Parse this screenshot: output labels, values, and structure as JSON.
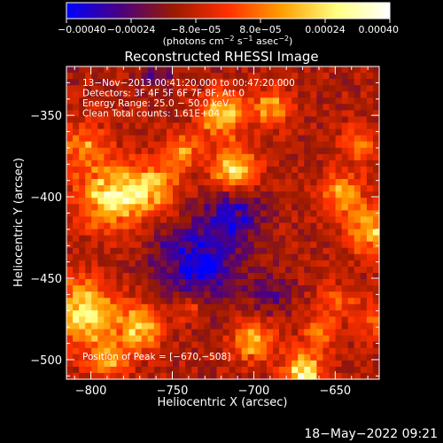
{
  "chart_data": {
    "type": "heatmap",
    "title": "Reconstructed RHESSI Image",
    "xlabel": "Heliocentric X (arcsec)",
    "ylabel": "Heliocentric Y (arcsec)",
    "xlim": [
      -815,
      -623
    ],
    "ylim": [
      -512,
      -320
    ],
    "x_ticks": [
      {
        "value": -800,
        "label": "−800"
      },
      {
        "value": -750,
        "label": "−750"
      },
      {
        "value": -700,
        "label": "−700"
      },
      {
        "value": -650,
        "label": "−650"
      }
    ],
    "y_ticks": [
      {
        "value": -350,
        "label": "−350"
      },
      {
        "value": -400,
        "label": "−400"
      },
      {
        "value": -450,
        "label": "−450"
      },
      {
        "value": -500,
        "label": "−500"
      }
    ],
    "colorbar": {
      "range": [
        -0.0004,
        0.0004
      ],
      "ticks": [
        {
          "value": -0.0004,
          "label": "−0.00040"
        },
        {
          "value": -0.00024,
          "label": "−0.00024"
        },
        {
          "value": -8e-05,
          "label": "−8.0e−05"
        },
        {
          "value": 8e-05,
          "label": "8.0e−05"
        },
        {
          "value": 0.00024,
          "label": "0.00024"
        },
        {
          "value": 0.0004,
          "label": "0.00040"
        }
      ],
      "unit_parts": [
        "(photons cm",
        "−2",
        " s",
        "−1",
        " asec",
        "−2",
        ")"
      ],
      "colors": [
        "#0000ff",
        "#4b0082",
        "#9b1a00",
        "#ff3000",
        "#ff9f00",
        "#ffff80",
        "#ffffff"
      ]
    },
    "annotations": [
      "13−Nov−2013 00:41:20.000 to 00:47:20.000",
      "Detectors: 3F 4F 5F 6F 7F 8F, Att 0",
      "Energy Range: 25.0 − 50.0 keV",
      "Clean     Total counts: 1.61E+04"
    ],
    "peak_label": "Position of Peak = [−670,−508]",
    "peak": {
      "x": -670,
      "y": -508
    },
    "grid": false,
    "bright_regions": [
      {
        "x": -790,
        "y": -400,
        "amp": 0.00034,
        "sigma": 13
      },
      {
        "x": -765,
        "y": -395,
        "amp": 0.0003,
        "sigma": 12
      },
      {
        "x": -805,
        "y": -368,
        "amp": 0.00022,
        "sigma": 10
      },
      {
        "x": -720,
        "y": -350,
        "amp": 0.00034,
        "sigma": 9
      },
      {
        "x": -712,
        "y": -382,
        "amp": 0.00036,
        "sigma": 9
      },
      {
        "x": -690,
        "y": -345,
        "amp": 0.00024,
        "sigma": 8
      },
      {
        "x": -745,
        "y": -372,
        "amp": 0.0002,
        "sigma": 8
      },
      {
        "x": -645,
        "y": -398,
        "amp": 0.00024,
        "sigma": 9
      },
      {
        "x": -628,
        "y": -420,
        "amp": 0.00028,
        "sigma": 10
      },
      {
        "x": -635,
        "y": -368,
        "amp": 0.0002,
        "sigma": 8
      },
      {
        "x": -805,
        "y": -470,
        "amp": 0.0004,
        "sigma": 13
      },
      {
        "x": -770,
        "y": -480,
        "amp": 0.00028,
        "sigma": 10
      },
      {
        "x": -790,
        "y": -500,
        "amp": 0.00026,
        "sigma": 9
      },
      {
        "x": -670,
        "y": -508,
        "amp": 0.0004,
        "sigma": 8
      },
      {
        "x": -700,
        "y": -488,
        "amp": 0.00028,
        "sigma": 9
      },
      {
        "x": -650,
        "y": -465,
        "amp": 0.00016,
        "sigma": 8
      },
      {
        "x": -660,
        "y": -485,
        "amp": 0.00022,
        "sigma": 7
      },
      {
        "x": -740,
        "y": -468,
        "amp": 0.00014,
        "sigma": 7
      },
      {
        "x": -625,
        "y": -475,
        "amp": 0.00018,
        "sigma": 8
      }
    ],
    "dark_regions": [
      {
        "x": -735,
        "y": -440,
        "amp": -0.00026,
        "sigma": 18
      },
      {
        "x": -712,
        "y": -412,
        "amp": -0.00018,
        "sigma": 12
      },
      {
        "x": -760,
        "y": -325,
        "amp": -0.00012,
        "sigma": 8
      },
      {
        "x": -690,
        "y": -460,
        "amp": -0.00012,
        "sigma": 10
      }
    ]
  },
  "footer": {
    "timestamp": "18−May−2022 09:21"
  }
}
